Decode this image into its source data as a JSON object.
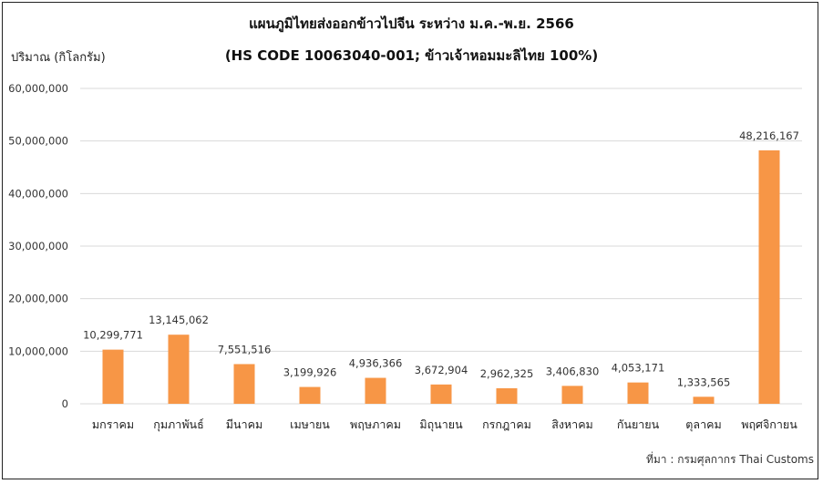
{
  "chart_data": {
    "type": "bar",
    "title": "แผนภูมิไทยส่งออกข้าวไปจีน ระหว่าง ม.ค.-พ.ย. 2566",
    "subtitle": "(HS CODE 10063040-001; ข้าวเจ้าหอมมะลิไทย 100%)",
    "xlabel": "",
    "ylabel": "ปริมาณ (กิโลกรัม)",
    "categories": [
      "มกราคม",
      "กุมภาพันธ์",
      "มีนาคม",
      "เมษายน",
      "พฤษภาคม",
      "มิถุนายน",
      "กรกฎาคม",
      "สิงหาคม",
      "กันยายน",
      "ตุลาคม",
      "พฤศจิกายน"
    ],
    "values": [
      10299771,
      13145062,
      7551516,
      3199926,
      4936366,
      3672904,
      2962325,
      3406830,
      4053171,
      1333565,
      48216167
    ],
    "data_labels": [
      "10,299,771",
      "13,145,062",
      "7,551,516",
      "3,199,926",
      "4,936,366",
      "3,672,904",
      "2,962,325",
      "3,406,830",
      "4,053,171",
      "1,333,565",
      "48,216,167"
    ],
    "ylim": [
      0,
      60000000
    ],
    "yticks": [
      0,
      10000000,
      20000000,
      30000000,
      40000000,
      50000000,
      60000000
    ],
    "ytick_labels": [
      "0",
      "10,000,000",
      "20,000,000",
      "30,000,000",
      "40,000,000",
      "50,000,000",
      "60,000,000"
    ],
    "grid": true,
    "legend": "none",
    "bar_color": "#F79646",
    "grid_color": "#d9d9d9"
  },
  "source": "ที่มา : กรมศุลกากร Thai Customs"
}
